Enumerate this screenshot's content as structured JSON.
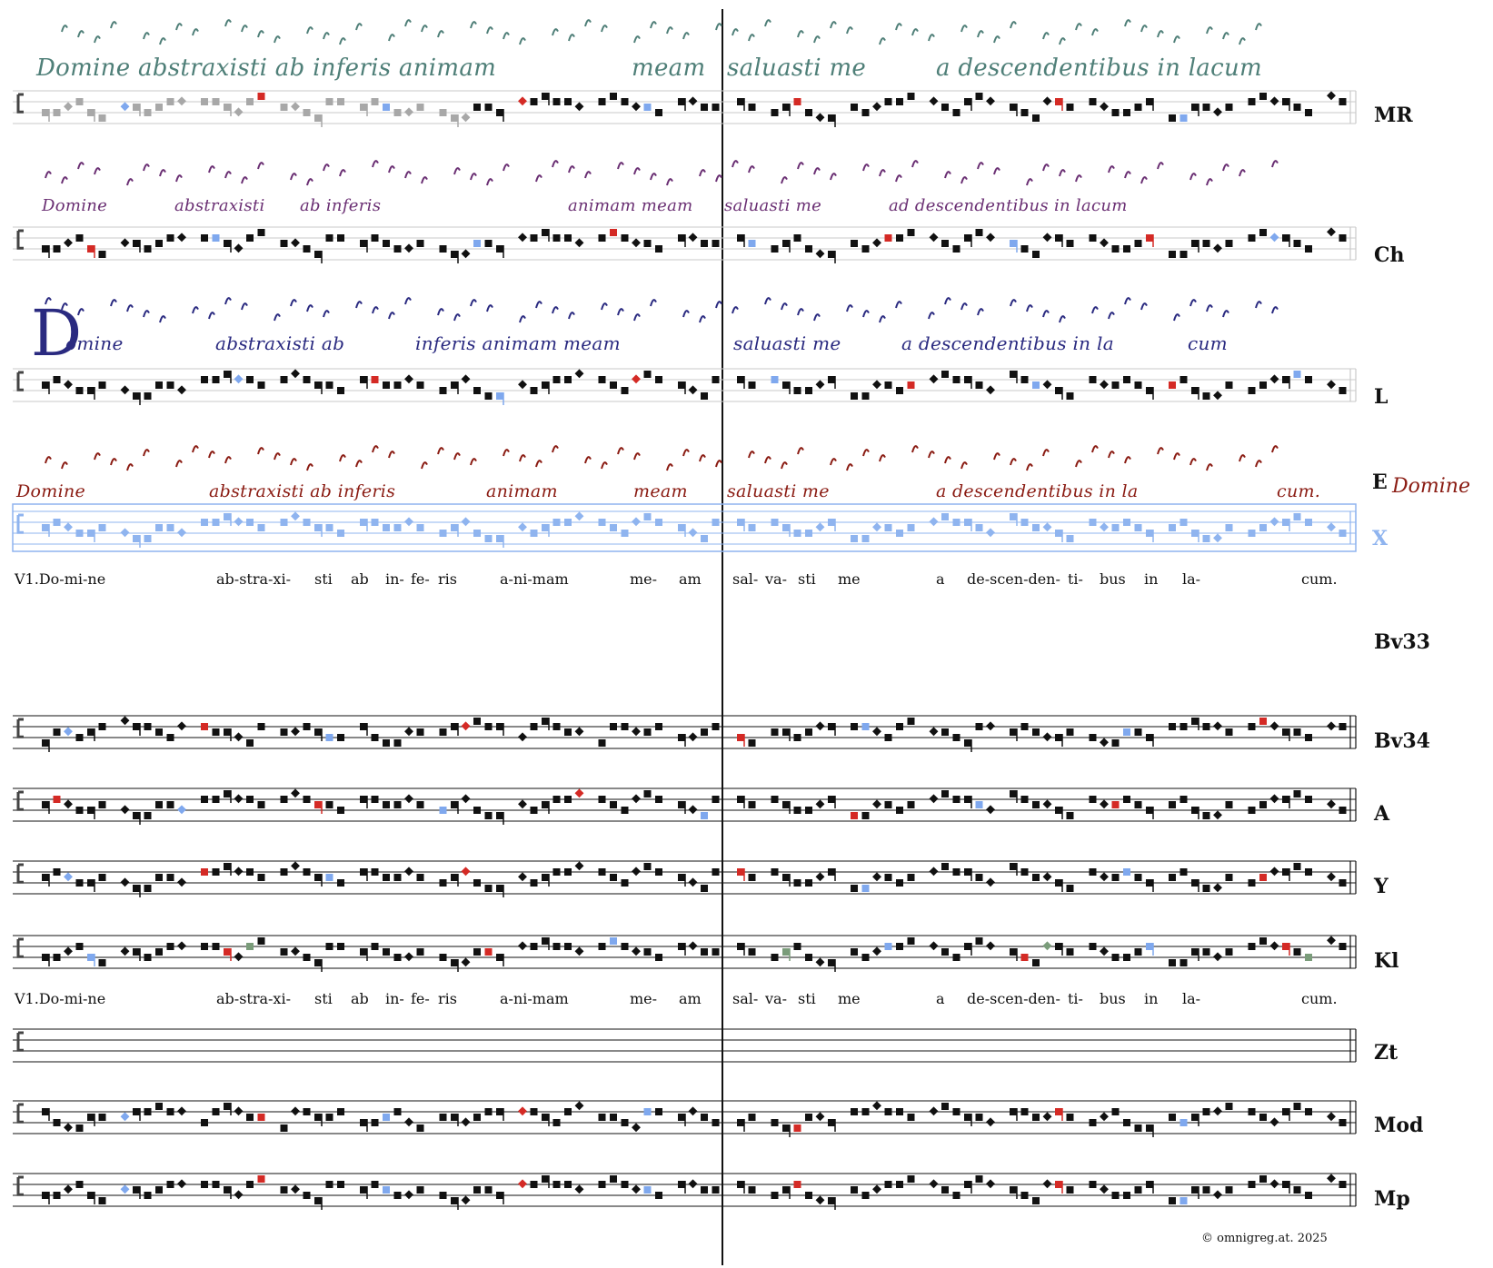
{
  "colors": {
    "ink": "#111111",
    "staff": "#8f8f8f",
    "staff_faint": "#c9c9c9",
    "red": "#d42a25",
    "blue": "#7fa8ee",
    "grey": "#a8a8a8",
    "green": "#7a9c7a",
    "ms_MR": "#4f7f78",
    "ms_Ch": "#6a2f73",
    "ms_L": "#2a2a80",
    "ms_E": "#8a1b12",
    "x_staff": "#8fb4ef"
  },
  "icons": [
    "c-clef-icon",
    "bar-line-icon"
  ],
  "sources": [
    {
      "id": "MR",
      "label": "MR",
      "kind": "neumes-staff",
      "ms_color_key": "ms_MR",
      "manuscript_words": [
        {
          "text": "Domine abstraxisti ab inferis animam"
        },
        {
          "text": "meam"
        },
        {
          "text": "saluasti me"
        },
        {
          "text": "a descendentibus in lacum"
        }
      ]
    },
    {
      "id": "Ch",
      "label": "Ch",
      "kind": "neumes-staff",
      "ms_color_key": "ms_Ch",
      "manuscript_words": [
        {
          "text": "Domine"
        },
        {
          "text": "abstraxisti"
        },
        {
          "text": "ab inferis"
        },
        {
          "text": "animam meam"
        },
        {
          "text": "saluasti me"
        },
        {
          "text": "ad descendentibus in lacum"
        }
      ]
    },
    {
      "id": "L",
      "label": "L",
      "kind": "neumes-staff",
      "ms_color_key": "ms_L",
      "manuscript_words": [
        {
          "text": "omine"
        },
        {
          "text": "abstraxisti ab"
        },
        {
          "text": "inferis animam meam"
        },
        {
          "text": "saluasti me"
        },
        {
          "text": "a descendentibus in la"
        },
        {
          "text": "cum"
        }
      ]
    },
    {
      "id": "E",
      "label": "E",
      "kind": "neumes",
      "ms_color_key": "ms_E",
      "manuscript_words": [
        {
          "text": "Domine"
        },
        {
          "text": "abstraxisti ab inferis"
        },
        {
          "text": "animam"
        },
        {
          "text": "meam"
        },
        {
          "text": "saluasti me"
        },
        {
          "text": "a descendentibus in la"
        },
        {
          "text": "cum."
        }
      ],
      "margin_text": "Domine"
    },
    {
      "id": "X",
      "label": "X",
      "kind": "staff-blue"
    },
    {
      "id": "Bv33",
      "label": "Bv33",
      "kind": "label-only"
    },
    {
      "id": "Bv34",
      "label": "Bv34",
      "kind": "staff"
    },
    {
      "id": "A",
      "label": "A",
      "kind": "staff"
    },
    {
      "id": "Y",
      "label": "Y",
      "kind": "staff"
    },
    {
      "id": "Kl",
      "label": "Kl",
      "kind": "staff"
    },
    {
      "id": "Zt",
      "label": "Zt",
      "kind": "staff-empty"
    },
    {
      "id": "Mod",
      "label": "Mod",
      "kind": "staff"
    },
    {
      "id": "Mp",
      "label": "Mp",
      "kind": "staff"
    }
  ],
  "lyrics": [
    {
      "text": "V1.Do-mi-ne"
    },
    {
      "text": "ab-stra-xi-"
    },
    {
      "text": "sti"
    },
    {
      "text": "ab"
    },
    {
      "text": "in-"
    },
    {
      "text": "fe-"
    },
    {
      "text": "ris"
    },
    {
      "text": "a-ni-mam"
    },
    {
      "text": "me-"
    },
    {
      "text": "am"
    },
    {
      "text": "sal-"
    },
    {
      "text": "va-"
    },
    {
      "text": "sti"
    },
    {
      "text": "me"
    },
    {
      "text": "a"
    },
    {
      "text": "de-scen-den-"
    },
    {
      "text": "ti-"
    },
    {
      "text": "bus"
    },
    {
      "text": "in"
    },
    {
      "text": "la-"
    },
    {
      "text": "cum."
    }
  ],
  "copyright": "©  omnigreg.at.   2025"
}
